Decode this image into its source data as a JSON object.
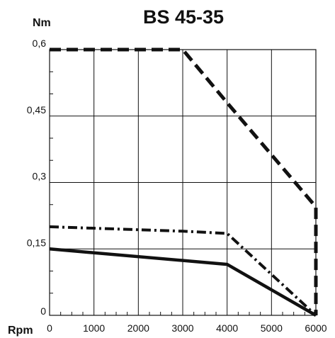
{
  "chart_data": {
    "type": "line",
    "title": "BS 45-35",
    "xlabel": "Rpm",
    "ylabel": "Nm",
    "xlim": [
      0,
      6000
    ],
    "ylim": [
      0,
      0.6
    ],
    "grid": true,
    "x_ticks": [
      0,
      1000,
      2000,
      3000,
      4000,
      5000,
      6000
    ],
    "x_tick_labels": [
      "0",
      "1000",
      "2000",
      "3000",
      "4000",
      "5000",
      "6000"
    ],
    "y_ticks": [
      0,
      0.15,
      0.3,
      0.45,
      0.6
    ],
    "y_tick_labels": [
      "0",
      "0,15",
      "0,3",
      "0,45",
      "0,6"
    ],
    "series": [
      {
        "style": "dashed",
        "color": "#111111",
        "x": [
          0,
          3000,
          4000,
          6000,
          6000
        ],
        "y": [
          0.6,
          0.6,
          0.48,
          0.245,
          0
        ]
      },
      {
        "style": "dash-dot",
        "color": "#111111",
        "x": [
          0,
          3000,
          4000,
          6000
        ],
        "y": [
          0.2,
          0.19,
          0.185,
          0
        ]
      },
      {
        "style": "solid",
        "color": "#111111",
        "x": [
          0,
          4000,
          6000
        ],
        "y": [
          0.15,
          0.115,
          0
        ]
      }
    ]
  }
}
